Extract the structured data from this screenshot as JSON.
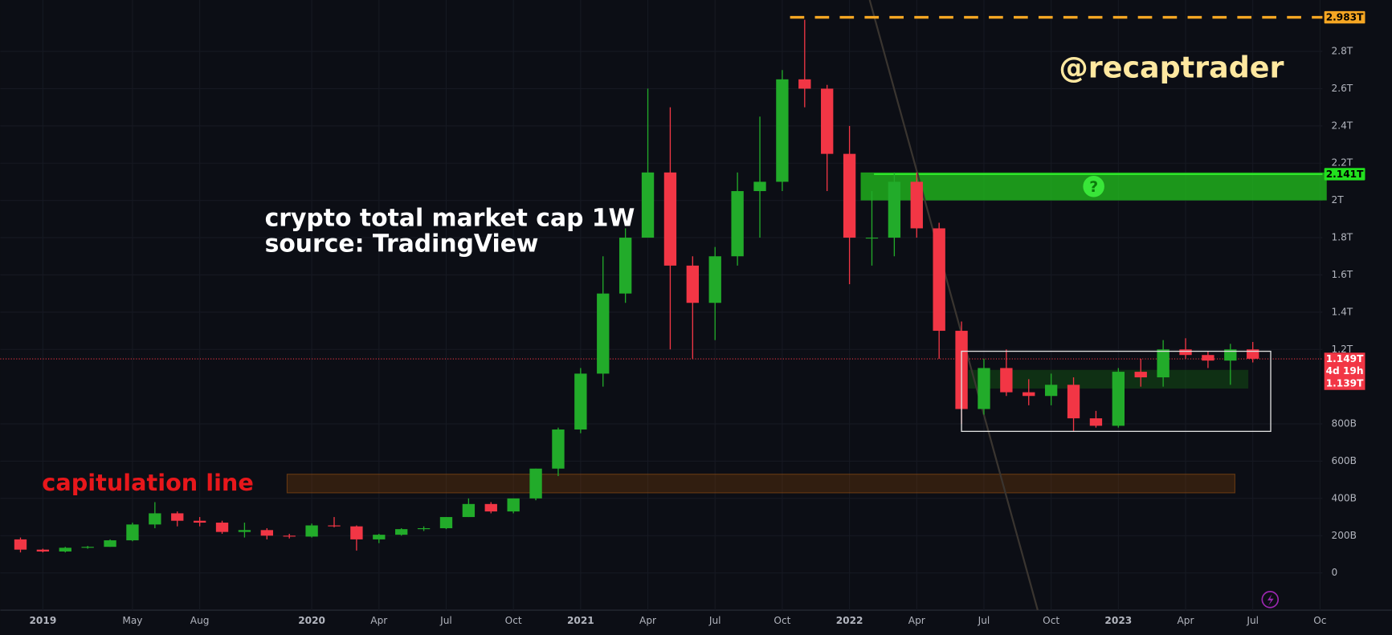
{
  "chart_data": {
    "type": "candlestick",
    "title": "crypto total market cap 1W",
    "subtitle": "source: TradingView",
    "watermark": "@recaptrader",
    "up_color": "#22ab2a",
    "down_color": "#f23645",
    "x": [
      -1,
      0,
      1,
      2,
      3,
      4,
      5,
      6,
      7,
      8,
      9,
      10,
      11,
      12,
      13,
      14,
      15,
      16,
      17,
      18,
      19,
      20,
      21,
      22,
      23,
      24,
      25,
      26,
      27,
      28,
      29,
      30,
      31,
      32,
      33,
      34,
      35,
      36,
      37,
      38,
      39,
      40,
      41,
      42,
      43,
      44,
      45,
      46,
      47,
      48,
      49,
      50,
      51,
      52,
      53,
      54
    ],
    "candles": [
      [
        180,
        190,
        110,
        125
      ],
      [
        125,
        130,
        110,
        115
      ],
      [
        115,
        140,
        110,
        135
      ],
      [
        135,
        145,
        130,
        140
      ],
      [
        140,
        180,
        140,
        175
      ],
      [
        175,
        270,
        170,
        260
      ],
      [
        260,
        380,
        240,
        320
      ],
      [
        320,
        330,
        250,
        280
      ],
      [
        280,
        300,
        250,
        270
      ],
      [
        270,
        280,
        210,
        220
      ],
      [
        220,
        270,
        190,
        230
      ],
      [
        230,
        240,
        180,
        200
      ],
      [
        200,
        210,
        185,
        195
      ],
      [
        195,
        265,
        190,
        255
      ],
      [
        255,
        300,
        245,
        250
      ],
      [
        250,
        255,
        120,
        180
      ],
      [
        180,
        210,
        160,
        205
      ],
      [
        205,
        240,
        200,
        235
      ],
      [
        235,
        250,
        225,
        240
      ],
      [
        240,
        300,
        235,
        300
      ],
      [
        300,
        400,
        300,
        370
      ],
      [
        370,
        380,
        320,
        330
      ],
      [
        330,
        400,
        320,
        400
      ],
      [
        400,
        560,
        390,
        560
      ],
      [
        560,
        780,
        520,
        770
      ],
      [
        770,
        1100,
        750,
        1070
      ],
      [
        1070,
        1700,
        1000,
        1500
      ],
      [
        1500,
        1850,
        1450,
        1800
      ],
      [
        1800,
        2600,
        1800,
        2150
      ],
      [
        2150,
        2500,
        1200,
        1650
      ],
      [
        1650,
        1700,
        1150,
        1450
      ],
      [
        1450,
        1750,
        1250,
        1700
      ],
      [
        1700,
        2150,
        1650,
        2050
      ],
      [
        2050,
        2450,
        1800,
        2100
      ],
      [
        2100,
        2700,
        2050,
        2650
      ],
      [
        2650,
        2970,
        2500,
        2600
      ],
      [
        2600,
        2620,
        2050,
        2250
      ],
      [
        2250,
        2400,
        1550,
        1800
      ],
      [
        1800,
        2050,
        1650,
        1800
      ],
      [
        1800,
        2150,
        1700,
        2100
      ],
      [
        2100,
        2150,
        1800,
        1850
      ],
      [
        1850,
        1880,
        1150,
        1300
      ],
      [
        1300,
        1350,
        800,
        880
      ],
      [
        880,
        1150,
        850,
        1100
      ],
      [
        1100,
        1200,
        950,
        970
      ],
      [
        970,
        1040,
        900,
        950
      ],
      [
        950,
        1070,
        900,
        1010
      ],
      [
        1010,
        1050,
        760,
        830
      ],
      [
        830,
        870,
        780,
        790
      ],
      [
        790,
        1100,
        780,
        1080
      ],
      [
        1080,
        1150,
        1000,
        1050
      ],
      [
        1050,
        1250,
        1000,
        1200
      ],
      [
        1200,
        1260,
        1150,
        1170
      ],
      [
        1170,
        1190,
        1100,
        1140
      ],
      [
        1140,
        1230,
        1010,
        1200
      ],
      [
        1200,
        1240,
        1130,
        1150
      ]
    ],
    "xlim": [
      -1.9,
      57.11
    ],
    "ylim": [
      -200,
      3076
    ],
    "xticks": [
      {
        "value": 0,
        "label": "2019"
      },
      {
        "value": 4,
        "label": "May"
      },
      {
        "value": 7,
        "label": "Aug"
      },
      {
        "value": 12,
        "label": "2020"
      },
      {
        "value": 15,
        "label": "Apr"
      },
      {
        "value": 18,
        "label": "Jul"
      },
      {
        "value": 21,
        "label": "Oct"
      },
      {
        "value": 24,
        "label": "2021"
      },
      {
        "value": 27,
        "label": "Apr"
      },
      {
        "value": 30,
        "label": "Jul"
      },
      {
        "value": 33,
        "label": "Oct"
      },
      {
        "value": 36,
        "label": "2022"
      },
      {
        "value": 39,
        "label": "Apr"
      },
      {
        "value": 42,
        "label": "Jul"
      },
      {
        "value": 45,
        "label": "Oct"
      },
      {
        "value": 48,
        "label": "2023"
      },
      {
        "value": 51,
        "label": "Apr"
      },
      {
        "value": 54,
        "label": "Jul"
      },
      {
        "value": 57,
        "label": "Oc"
      }
    ],
    "yticks": [
      0,
      {
        "value": 200,
        "label": "200B"
      },
      {
        "value": 400,
        "label": "400B"
      },
      {
        "value": 600,
        "label": "600B"
      },
      {
        "value": 800,
        "label": "800B"
      },
      {
        "value": 1200,
        "label": "1.2T"
      },
      {
        "value": 1400,
        "label": "1.4T"
      },
      {
        "value": 1600,
        "label": "1.6T"
      },
      {
        "value": 1800,
        "label": "1.8T"
      },
      {
        "value": 2000,
        "label": "2T"
      },
      {
        "value": 2200,
        "label": "2.2T"
      },
      {
        "value": 2400,
        "label": "2.4T"
      },
      {
        "value": 2600,
        "label": "2.6T"
      },
      {
        "value": 2800,
        "label": "2.8T"
      }
    ],
    "grid": true,
    "top_level": {
      "value": 2983,
      "label": "2.983T",
      "color": "#f5a623"
    },
    "resistance": {
      "xlim": [
        36.5,
        57.3
      ],
      "ylim": [
        2000,
        2150
      ],
      "marker": {
        "value": 2141,
        "label": "2.141T"
      },
      "note": "?",
      "color": "#22c41e"
    },
    "price": {
      "value": 1149,
      "label": "1.149T",
      "countdown": "4d 19h",
      "previous": {
        "value": 1139,
        "label": "1.139T"
      },
      "color": "#f23645"
    },
    "range_box": {
      "xlim": [
        41,
        54.8
      ],
      "ylim": [
        760,
        1190
      ]
    },
    "inner_zone": {
      "xlim": [
        41.3,
        53.8
      ],
      "ylim": [
        990,
        1090
      ]
    },
    "capitulation": {
      "label": "capitulation line",
      "xlim": [
        10.9,
        53.2
      ],
      "ylim": [
        430,
        530
      ]
    },
    "trend_line": [
      [
        36.9,
        3076
      ],
      [
        44.4,
        -200
      ]
    ]
  }
}
